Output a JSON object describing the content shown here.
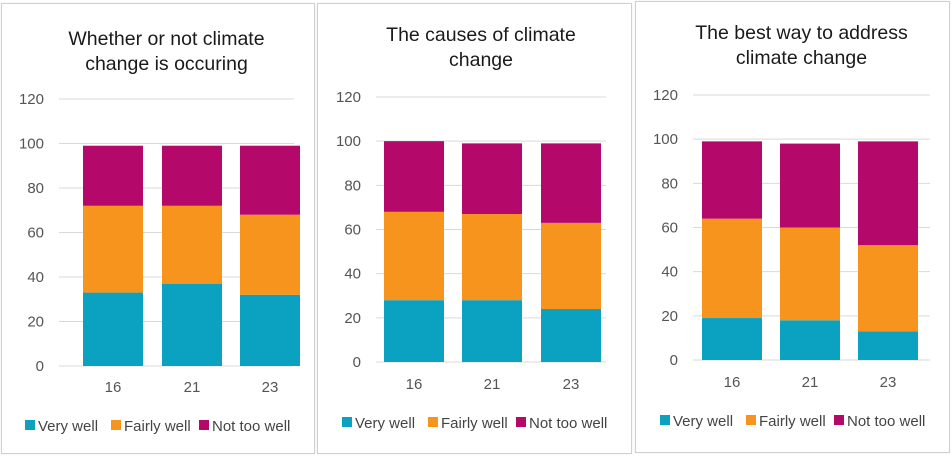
{
  "colors": {
    "very_well": "#0aa2c0",
    "fairly_well": "#f7941d",
    "not_too_well": "#b5086b",
    "grid": "#d9d9d9",
    "tick_text": "#555555"
  },
  "chart_data": [
    {
      "type": "bar",
      "stacked": true,
      "title": [
        "Whether or not climate",
        "change is occuring"
      ],
      "categories": [
        "16",
        "21",
        "23"
      ],
      "ylim": [
        0,
        120
      ],
      "yticks": [
        0,
        20,
        40,
        60,
        80,
        100,
        120
      ],
      "grid": true,
      "legend": "bottom",
      "series": [
        {
          "name": "Very well",
          "values": [
            33,
            37,
            32
          ]
        },
        {
          "name": "Fairly well",
          "values": [
            39,
            35,
            36
          ]
        },
        {
          "name": "Not too well",
          "values": [
            27,
            27,
            31
          ]
        }
      ]
    },
    {
      "type": "bar",
      "stacked": true,
      "title": [
        "The causes of climate",
        "change"
      ],
      "categories": [
        "16",
        "21",
        "23"
      ],
      "ylim": [
        0,
        120
      ],
      "yticks": [
        0,
        20,
        40,
        60,
        80,
        100,
        120
      ],
      "grid": true,
      "legend": "bottom",
      "series": [
        {
          "name": "Very well",
          "values": [
            28,
            28,
            24
          ]
        },
        {
          "name": "Fairly well",
          "values": [
            40,
            39,
            39
          ]
        },
        {
          "name": "Not too well",
          "values": [
            32,
            32,
            36
          ]
        }
      ]
    },
    {
      "type": "bar",
      "stacked": true,
      "title": [
        "The best way to address",
        "climate change"
      ],
      "categories": [
        "16",
        "21",
        "23"
      ],
      "ylim": [
        0,
        120
      ],
      "yticks": [
        0,
        20,
        40,
        60,
        80,
        100,
        120
      ],
      "grid": true,
      "legend": "bottom",
      "series": [
        {
          "name": "Very well",
          "values": [
            19,
            18,
            13
          ]
        },
        {
          "name": "Fairly well",
          "values": [
            45,
            42,
            39
          ]
        },
        {
          "name": "Not too well",
          "values": [
            35,
            38,
            47
          ]
        }
      ]
    }
  ]
}
